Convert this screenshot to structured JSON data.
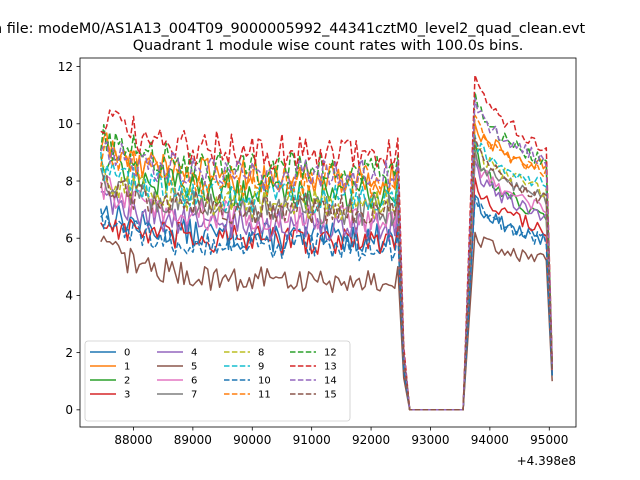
{
  "figure": {
    "suptitle": "n file: modeM0/AS1A13_004T09_9000005992_44341cztM0_level2_quad_clean.evt",
    "offset_label": "+4.398e8"
  },
  "chart_data": {
    "type": "line",
    "title": "Quadrant 1 module wise count rates with 100.0s bins.",
    "xlabel": "",
    "ylabel": "",
    "x_offset": 439800000,
    "xlim": [
      87100,
      95450
    ],
    "ylim": [
      -0.6,
      12.3
    ],
    "xticks": [
      88000,
      89000,
      90000,
      91000,
      92000,
      93000,
      94000,
      95000
    ],
    "xtick_labels": [
      "88000",
      "89000",
      "90000",
      "91000",
      "92000",
      "93000",
      "94000",
      "95000"
    ],
    "yticks": [
      0,
      2,
      4,
      6,
      8,
      10,
      12
    ],
    "ytick_labels": [
      "0",
      "2",
      "4",
      "6",
      "8",
      "10",
      "12"
    ],
    "grid": false,
    "legend_position": "lower-left",
    "legend_columns": 4,
    "segments": {
      "seg1": {
        "x_start": 87450,
        "x_end": 92450
      },
      "drop": {
        "x_end": 92550
      },
      "zero": {
        "x_start": 92650,
        "x_end": 93550
      },
      "seg2": {
        "x_start": 93750,
        "x_end": 94950
      },
      "end": {
        "x": 95050
      }
    },
    "series": [
      {
        "name": "0",
        "color": "#1f77b4",
        "dashed": false,
        "seg1_level": 6.0,
        "seg1_start": 7.0,
        "seg2_peak": 7.5,
        "seg2_end": 5.9,
        "end": 1.2
      },
      {
        "name": "1",
        "color": "#ff7f0e",
        "dashed": false,
        "seg1_level": 8.1,
        "seg1_start": 9.3,
        "seg2_peak": 10.0,
        "seg2_end": 8.5,
        "end": 1.5
      },
      {
        "name": "2",
        "color": "#2ca02c",
        "dashed": false,
        "seg1_level": 7.6,
        "seg1_start": 9.0,
        "seg2_peak": 9.3,
        "seg2_end": 6.7,
        "end": 1.4
      },
      {
        "name": "3",
        "color": "#d62728",
        "dashed": false,
        "seg1_level": 5.9,
        "seg1_start": 6.6,
        "seg2_peak": 8.1,
        "seg2_end": 6.3,
        "end": 1.3
      },
      {
        "name": "4",
        "color": "#9467bd",
        "dashed": false,
        "seg1_level": 6.4,
        "seg1_start": 7.6,
        "seg2_peak": 8.7,
        "seg2_end": 6.7,
        "end": 1.3
      },
      {
        "name": "5",
        "color": "#8c564b",
        "dashed": false,
        "seg1_level": 4.5,
        "seg1_start": 5.8,
        "seg2_peak": 6.2,
        "seg2_end": 5.2,
        "end": 1.0
      },
      {
        "name": "6",
        "color": "#e377c2",
        "dashed": false,
        "seg1_level": 6.7,
        "seg1_start": 7.8,
        "seg2_peak": 8.9,
        "seg2_end": 7.0,
        "end": 1.4
      },
      {
        "name": "7",
        "color": "#7f7f7f",
        "dashed": false,
        "seg1_level": 7.0,
        "seg1_start": 8.2,
        "seg2_peak": 9.1,
        "seg2_end": 7.4,
        "end": 1.5
      },
      {
        "name": "8",
        "color": "#bcbd22",
        "dashed": true,
        "seg1_level": 7.2,
        "seg1_start": 8.3,
        "seg2_peak": 9.4,
        "seg2_end": 7.6,
        "end": 1.5
      },
      {
        "name": "9",
        "color": "#17becf",
        "dashed": true,
        "seg1_level": 7.4,
        "seg1_start": 8.6,
        "seg2_peak": 9.6,
        "seg2_end": 7.8,
        "end": 1.6
      },
      {
        "name": "10",
        "color": "#1f77b4",
        "dashed": true,
        "seg1_level": 5.7,
        "seg1_start": 6.6,
        "seg2_peak": 7.4,
        "seg2_end": 5.9,
        "end": 1.2
      },
      {
        "name": "11",
        "color": "#ff7f0e",
        "dashed": true,
        "seg1_level": 8.0,
        "seg1_start": 9.1,
        "seg2_peak": 10.3,
        "seg2_end": 8.2,
        "end": 1.6
      },
      {
        "name": "12",
        "color": "#2ca02c",
        "dashed": true,
        "seg1_level": 8.4,
        "seg1_start": 9.6,
        "seg2_peak": 11.1,
        "seg2_end": 8.6,
        "end": 1.6
      },
      {
        "name": "13",
        "color": "#d62728",
        "dashed": true,
        "seg1_level": 9.0,
        "seg1_start": 10.2,
        "seg2_peak": 11.7,
        "seg2_end": 9.2,
        "end": 1.7
      },
      {
        "name": "14",
        "color": "#9467bd",
        "dashed": true,
        "seg1_level": 8.2,
        "seg1_start": 9.4,
        "seg2_peak": 10.9,
        "seg2_end": 8.7,
        "end": 1.6
      },
      {
        "name": "15",
        "color": "#8c564b",
        "dashed": true,
        "seg1_level": 7.0,
        "seg1_start": 8.0,
        "seg2_peak": 9.5,
        "seg2_end": 7.3,
        "end": 1.4
      }
    ]
  }
}
